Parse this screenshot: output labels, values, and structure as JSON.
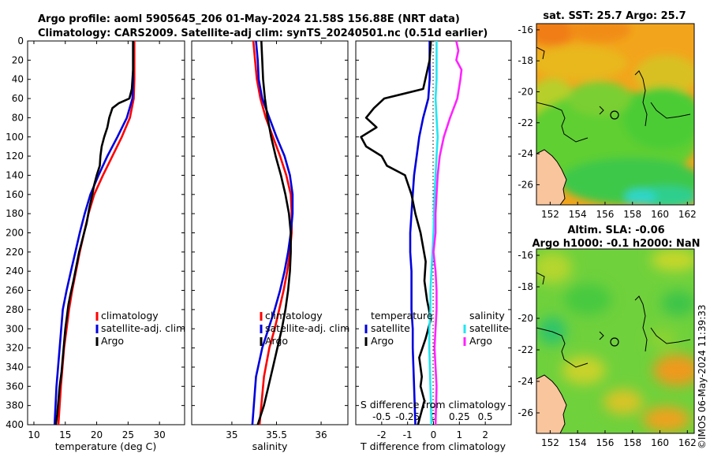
{
  "titles": {
    "line1": "Argo profile: aoml 5905645_206 01-May-2024 21.58S 156.88E (NRT data)",
    "line2": "Climatology: CARS2009. Satellite-adj clim: synTS_20240501.nc (0.51d earlier)"
  },
  "timestamp": "©IMOS 06-May-2024 11:39:33",
  "colors": {
    "climatology": "#ff0000",
    "satellite": "#0000dd",
    "argo": "#000000",
    "sat_salinity": "#22e6f2",
    "argo_salinity": "#ff22ff"
  },
  "chart_data": [
    {
      "type": "line",
      "panel": "temperature",
      "xlabel": "temperature (deg C)",
      "ylabel": "",
      "xlim": [
        9,
        34
      ],
      "ylim": [
        400,
        0
      ],
      "xticks": [
        10,
        15,
        20,
        25,
        30
      ],
      "yticks": [
        0,
        20,
        40,
        60,
        80,
        100,
        120,
        140,
        160,
        180,
        200,
        220,
        240,
        260,
        280,
        300,
        320,
        340,
        360,
        380,
        400
      ],
      "legend": [
        "climatology",
        "satellite-adj. clim",
        "Argo"
      ],
      "series": [
        {
          "name": "climatology",
          "color_key": "climatology",
          "x": [
            26.0,
            26.0,
            26.0,
            25.9,
            25.3,
            24.0,
            22.5,
            21.0,
            19.6,
            18.7,
            18.0,
            17.3,
            16.7,
            16.1,
            15.6,
            15.2,
            14.8,
            14.3,
            13.9
          ],
          "y": [
            0,
            20,
            40,
            60,
            80,
            100,
            120,
            140,
            160,
            180,
            200,
            220,
            240,
            260,
            280,
            300,
            320,
            360,
            400
          ]
        },
        {
          "name": "satellite-adj. clim",
          "color_key": "satellite",
          "x": [
            25.8,
            25.8,
            25.8,
            25.7,
            24.8,
            23.3,
            21.7,
            20.3,
            19.0,
            18.1,
            17.3,
            16.6,
            15.9,
            15.2,
            14.6,
            14.1,
            13.6,
            13.3
          ],
          "y": [
            0,
            20,
            40,
            60,
            80,
            100,
            120,
            140,
            160,
            180,
            200,
            220,
            240,
            260,
            280,
            320,
            360,
            400
          ]
        },
        {
          "name": "Argo",
          "color_key": "argo",
          "x": [
            25.8,
            25.8,
            25.6,
            25.2,
            23.5,
            22.5,
            22.0,
            21.7,
            21.2,
            20.8,
            20.6,
            20.5,
            20.0,
            19.6,
            19.3,
            18.8,
            18.4,
            18.0,
            17.6,
            17.2,
            16.6,
            16.3,
            15.8,
            15.5,
            15.2,
            15.0,
            14.8,
            14.6,
            14.4,
            14.1,
            13.9,
            13.7,
            13.5
          ],
          "y": [
            0,
            30,
            50,
            60,
            65,
            70,
            80,
            90,
            100,
            110,
            120,
            130,
            140,
            150,
            160,
            175,
            190,
            200,
            210,
            220,
            240,
            250,
            265,
            275,
            290,
            300,
            315,
            330,
            345,
            360,
            375,
            390,
            400
          ]
        }
      ]
    },
    {
      "type": "line",
      "panel": "salinity",
      "xlabel": "salinity",
      "ylabel": "",
      "xlim": [
        34.55,
        36.3
      ],
      "ylim": [
        400,
        0
      ],
      "xticks": [
        35,
        35.5,
        36
      ],
      "legend": [
        "climatology",
        "satellite-adj. clim",
        "Argo"
      ],
      "series": [
        {
          "name": "climatology",
          "color_key": "climatology",
          "x": [
            35.24,
            35.26,
            35.28,
            35.32,
            35.38,
            35.46,
            35.54,
            35.61,
            35.66,
            35.67,
            35.67,
            35.65,
            35.62,
            35.58,
            35.53,
            35.48,
            35.42,
            35.36,
            35.31
          ],
          "y": [
            0,
            20,
            40,
            60,
            80,
            100,
            120,
            140,
            160,
            180,
            200,
            220,
            240,
            260,
            280,
            300,
            320,
            350,
            400
          ]
        },
        {
          "name": "satellite-adj. clim",
          "color_key": "satellite",
          "x": [
            35.27,
            35.29,
            35.3,
            35.34,
            35.42,
            35.5,
            35.59,
            35.65,
            35.68,
            35.68,
            35.66,
            35.63,
            35.59,
            35.54,
            35.48,
            35.41,
            35.34,
            35.27,
            35.23
          ],
          "y": [
            0,
            20,
            40,
            60,
            80,
            100,
            120,
            140,
            160,
            180,
            200,
            220,
            240,
            260,
            280,
            300,
            320,
            350,
            400
          ]
        },
        {
          "name": "Argo",
          "color_key": "argo",
          "x": [
            35.33,
            35.34,
            35.35,
            35.37,
            35.4,
            35.44,
            35.49,
            35.55,
            35.6,
            35.64,
            35.66,
            35.66,
            35.65,
            35.63,
            35.6,
            35.56,
            35.51,
            35.46,
            35.41,
            35.36,
            35.29
          ],
          "y": [
            0,
            20,
            40,
            60,
            80,
            100,
            120,
            140,
            160,
            180,
            200,
            220,
            240,
            260,
            280,
            300,
            320,
            340,
            360,
            380,
            400
          ]
        }
      ]
    },
    {
      "type": "line",
      "panel": "difference",
      "xlabel": "T difference from climatology",
      "top_xlabel": "S difference from climatology",
      "xlim": [
        -3.0,
        3.0
      ],
      "s_xlim": [
        -0.75,
        0.75
      ],
      "ylim": [
        400,
        0
      ],
      "xticks": [
        -2,
        -1,
        0,
        1,
        2
      ],
      "xticklabels": [
        "-2",
        "-1",
        "0",
        "1",
        "2"
      ],
      "s_xticks": [
        -0.5,
        -0.25,
        0,
        0.25,
        0.5
      ],
      "s_xticklabels": [
        "-0.5",
        "-0.25",
        "0",
        "0.25",
        "0.5"
      ],
      "legend_temperature": {
        "title": "temperature",
        "items": [
          "satellite",
          "Argo"
        ]
      },
      "legend_salinity": {
        "title": "salinity",
        "items": [
          "satellite",
          "Argo"
        ]
      },
      "series": [
        {
          "name": "temperature satellite",
          "axis": "T",
          "color_key": "satellite",
          "x": [
            -0.15,
            -0.15,
            -0.15,
            -0.2,
            -0.4,
            -0.55,
            -0.65,
            -0.75,
            -0.8,
            -0.85,
            -0.9,
            -0.9,
            -0.85,
            -0.85,
            -0.85,
            -0.8,
            -0.8,
            -0.75,
            -0.7
          ],
          "y": [
            0,
            20,
            40,
            60,
            80,
            100,
            120,
            140,
            160,
            180,
            200,
            220,
            240,
            260,
            280,
            300,
            320,
            360,
            400
          ]
        },
        {
          "name": "temperature Argo",
          "axis": "T",
          "color_key": "argo",
          "x": [
            -0.1,
            -0.15,
            -0.4,
            -1.9,
            -2.3,
            -2.6,
            -2.2,
            -2.8,
            -2.6,
            -2.0,
            -1.8,
            -1.1,
            -0.85,
            -0.7,
            -0.5,
            -0.3,
            -0.35,
            -0.25,
            -0.1,
            -0.3,
            -0.55,
            -0.45,
            -0.5,
            -0.35,
            -0.5,
            -0.6
          ],
          "y": [
            0,
            20,
            50,
            60,
            70,
            80,
            90,
            100,
            110,
            120,
            130,
            140,
            160,
            180,
            200,
            230,
            250,
            270,
            290,
            310,
            330,
            350,
            360,
            375,
            390,
            400
          ]
        },
        {
          "name": "salinity satellite",
          "axis": "S",
          "color_key": "sat_salinity",
          "x": [
            0.03,
            0.03,
            0.03,
            0.02,
            0.03,
            0.04,
            0.03,
            0.02,
            0.01,
            0.0,
            -0.01,
            -0.02,
            -0.03,
            -0.03,
            -0.04,
            -0.04,
            -0.03,
            -0.02
          ],
          "y": [
            0,
            20,
            40,
            60,
            80,
            100,
            120,
            140,
            160,
            200,
            220,
            240,
            260,
            280,
            300,
            320,
            360,
            400
          ]
        },
        {
          "name": "salinity Argo",
          "axis": "S",
          "color_key": "argo_salinity",
          "x": [
            0.22,
            0.24,
            0.22,
            0.27,
            0.26,
            0.23,
            0.16,
            0.1,
            0.06,
            0.04,
            0.03,
            0.02,
            0.02,
            0.0,
            0.02,
            0.03,
            0.03,
            0.02,
            0.01,
            0.02,
            0.03,
            0.02
          ],
          "y": [
            0,
            10,
            20,
            30,
            40,
            60,
            80,
            100,
            120,
            140,
            160,
            180,
            200,
            220,
            240,
            260,
            280,
            300,
            320,
            340,
            360,
            400
          ]
        }
      ]
    },
    {
      "type": "heatmap",
      "panel": "sst_map",
      "title": "sat. SST: 25.7 Argo: 25.7",
      "xticks": [
        152,
        154,
        156,
        158,
        160,
        162
      ],
      "yticks": [
        -16,
        -18,
        -20,
        -22,
        -24,
        -26
      ],
      "xlim": [
        151,
        162.5
      ],
      "ylim": [
        -27.3,
        -15.6
      ],
      "float_position": {
        "lon": 156.88,
        "lat": -21.58
      }
    },
    {
      "type": "heatmap",
      "panel": "sla_map",
      "title_line1": "Altim. SLA: -0.06",
      "title_line2": "Argo h1000: -0.1 h2000: NaN",
      "xticks": [
        152,
        154,
        156,
        158,
        160,
        162
      ],
      "yticks": [
        -16,
        -18,
        -20,
        -22,
        -24,
        -26
      ],
      "xlim": [
        151,
        162.5
      ],
      "ylim": [
        -27.3,
        -15.6
      ],
      "float_position": {
        "lon": 156.88,
        "lat": -21.58
      }
    }
  ]
}
